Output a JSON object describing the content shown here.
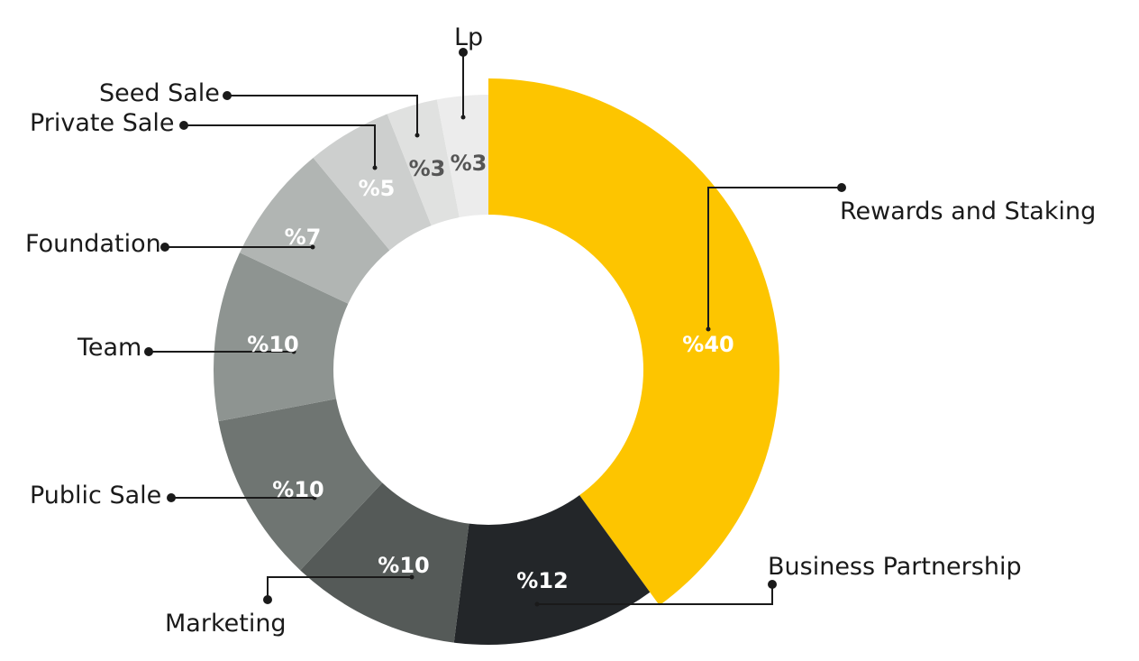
{
  "chart_data": {
    "type": "pie",
    "variant": "donut",
    "title": "",
    "slices": [
      {
        "label": "Rewards and Staking",
        "value": 40,
        "display": "%40",
        "color": "#fdc500",
        "text_color": "#ffffff"
      },
      {
        "label": "Business Partnership",
        "value": 12,
        "display": "%12",
        "color": "#232629",
        "text_color": "#ffffff"
      },
      {
        "label": "Marketing",
        "value": 10,
        "display": "%10",
        "color": "#555a58",
        "text_color": "#ffffff"
      },
      {
        "label": "Public Sale",
        "value": 10,
        "display": "%10",
        "color": "#6f7572",
        "text_color": "#ffffff"
      },
      {
        "label": "Team",
        "value": 10,
        "display": "%10",
        "color": "#8e9491",
        "text_color": "#ffffff"
      },
      {
        "label": "Foundation",
        "value": 7,
        "display": "%7",
        "color": "#b1b5b3",
        "text_color": "#ffffff"
      },
      {
        "label": "Private Sale",
        "value": 5,
        "display": "%5",
        "color": "#cdcfce",
        "text_color": "#ffffff"
      },
      {
        "label": "Seed Sale",
        "value": 3,
        "display": "%3",
        "color": "#e0e1e0",
        "text_color": "#555555"
      },
      {
        "label": "Lp",
        "value": 3,
        "display": "%3",
        "color": "#ececec",
        "text_color": "#555555"
      }
    ]
  }
}
